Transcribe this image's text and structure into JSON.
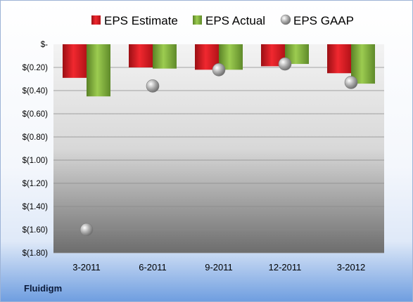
{
  "company": "Fluidigm",
  "chart_data": {
    "type": "bar",
    "categories": [
      "3-2011",
      "6-2011",
      "9-2011",
      "12-2011",
      "3-2012"
    ],
    "series": [
      {
        "name": "EPS Estimate",
        "kind": "bar",
        "color": "#e0202a",
        "values": [
          -0.29,
          -0.2,
          -0.22,
          -0.19,
          -0.25
        ]
      },
      {
        "name": "EPS Actual",
        "kind": "bar",
        "color": "#7fae3a",
        "values": [
          -0.45,
          -0.21,
          -0.22,
          -0.17,
          -0.34
        ]
      },
      {
        "name": "EPS GAAP",
        "kind": "scatter",
        "color": "#9a9a9a",
        "values": [
          -1.6,
          -0.36,
          -0.22,
          -0.17,
          -0.33
        ]
      }
    ],
    "ylim": [
      -1.8,
      0
    ],
    "yticks": [
      {
        "value": 0,
        "label": "$-"
      },
      {
        "value": -0.2,
        "label": "$(0.20)"
      },
      {
        "value": -0.4,
        "label": "$(0.40)"
      },
      {
        "value": -0.6,
        "label": "$(0.60)"
      },
      {
        "value": -0.8,
        "label": "$(0.80)"
      },
      {
        "value": -1.0,
        "label": "$(1.00)"
      },
      {
        "value": -1.2,
        "label": "$(1.20)"
      },
      {
        "value": -1.4,
        "label": "$(1.40)"
      },
      {
        "value": -1.6,
        "label": "$(1.60)"
      },
      {
        "value": -1.8,
        "label": "$(1.80)"
      }
    ],
    "grid": true,
    "legend": "top"
  }
}
